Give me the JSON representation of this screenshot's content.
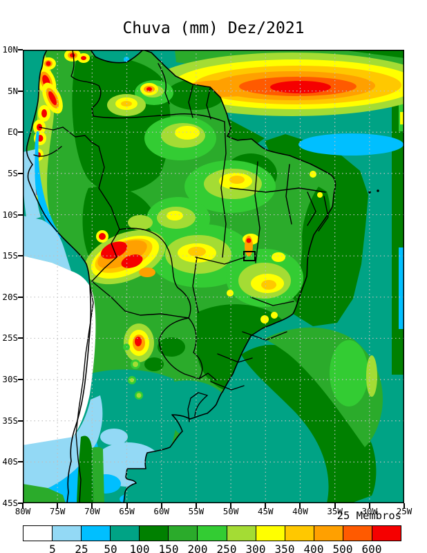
{
  "title": "Chuva (mm) Dez/2021",
  "annotation": {
    "members_label": "25 Membros"
  },
  "axes": {
    "lat_ticks": [
      "10N",
      "5N",
      "EQ",
      "5S",
      "10S",
      "15S",
      "20S",
      "25S",
      "30S",
      "35S",
      "40S",
      "45S"
    ],
    "lon_ticks": [
      "80W",
      "75W",
      "70W",
      "65W",
      "60W",
      "55W",
      "50W",
      "45W",
      "40W",
      "35W",
      "30W",
      "25W"
    ]
  },
  "colorbar": {
    "boundary_labels": [
      "5",
      "25",
      "50",
      "100",
      "150",
      "200",
      "250",
      "300",
      "350",
      "400",
      "500",
      "600"
    ],
    "colors": [
      "#ffffff",
      "#93d9f5",
      "#00bfff",
      "#00a385",
      "#008000",
      "#2bab2b",
      "#33cc33",
      "#a4dc34",
      "#ffff00",
      "#ffc800",
      "#ffa000",
      "#ff5a00",
      "#f50000"
    ]
  },
  "grid_color": "#c0c0c0",
  "chart_data": {
    "type": "heatmap",
    "subtype": "filled-contour-precipitation-map",
    "title": "Chuva (mm) Dez/2021",
    "variable": "Chuva",
    "units": "mm",
    "period": "Dez/2021",
    "ensemble": "25 Membros",
    "lon_range_deg": [
      -80,
      -25
    ],
    "lat_range_deg": [
      -45,
      10
    ],
    "grid_interval_deg": 5,
    "grid_style": "dotted",
    "levels_mm": [
      5,
      25,
      50,
      100,
      150,
      200,
      250,
      300,
      350,
      400,
      500,
      600
    ],
    "level_colors": [
      "#ffffff",
      "#93d9f5",
      "#00bfff",
      "#00a385",
      "#008000",
      "#2bab2b",
      "#33cc33",
      "#a4dc34",
      "#ffff00",
      "#ffc800",
      "#ffa000",
      "#ff5a00",
      "#f50000"
    ],
    "legend_position": "bottom",
    "features": [
      {
        "region": "ITCZ band, tropical North Atlantic (~5N, 55W-25W)",
        "value_mm": ">600 core, 300-600 surrounding band"
      },
      {
        "region": "Colombian / Ecuadorian Andes chain",
        "value_mm": ">600 spots over 100-300 background"
      },
      {
        "region": "Coastal Peru Andes spots (8S-13S)",
        "value_mm": ">600 spots"
      },
      {
        "region": "Bolivian Altiplano cluster (~15S-17S, 69W-65W)",
        "value_mm": ">600 with 350-600 fringe"
      },
      {
        "region": "Northwest Argentina spot (~25S, 65.5W)",
        "value_mm": ">600 small core"
      },
      {
        "region": "Amazon basin interior",
        "value_mm": "150-300 with 300-400 yellow patches"
      },
      {
        "region": "Tocantins streak (~47.5W, 12S-14S)",
        "value_mm": "500-600"
      },
      {
        "region": "Highlighted grid box near Brasília (~48W, 15S)",
        "value_mm": "300-400"
      },
      {
        "region": "Chile / western Argentina and adjacent SE Pacific (17S-37S)",
        "value_mm": "<5 (white)"
      },
      {
        "region": "Southern Argentina / Patagonia",
        "value_mm": "5-50"
      },
      {
        "region": "Uruguay and Rio Grande do Sul",
        "value_mm": "50-100"
      },
      {
        "region": "South Atlantic convergence band toward (30W, 40S)",
        "value_mm": "100-250 with 250-300 streak near 29W"
      },
      {
        "region": "Equatorial Atlantic lens (~33W, 1.5S)",
        "value_mm": "25-50"
      },
      {
        "region": "Open South Atlantic background",
        "value_mm": "50-100"
      }
    ]
  }
}
